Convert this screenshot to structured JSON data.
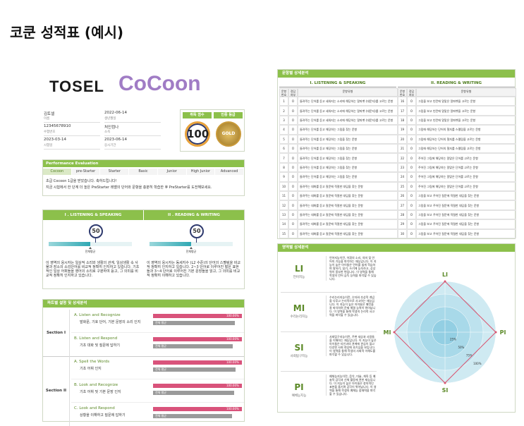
{
  "header": {
    "title": "코쿤 성적표 (예시)"
  },
  "report": {
    "logos": [
      "TOSEL",
      "CoCoon"
    ],
    "info": [
      {
        "value": "김토셀",
        "label": "이름"
      },
      {
        "value": "2022-06-14",
        "label": "생년월일"
      },
      {
        "value": "12345678910",
        "label": "수험번호"
      },
      {
        "value": "처인컴나",
        "label": "소속"
      },
      {
        "value": "2023-03-14",
        "label": "시험일"
      },
      {
        "value": "2023-06-14",
        "label": "응시기간"
      }
    ],
    "score": {
      "label": "취득 점수",
      "value": 100
    },
    "grade": {
      "label": "인증 등급",
      "value": "GOLD"
    },
    "evaluation": {
      "title": "Performance Evaluation",
      "levels": [
        "Cocoon",
        "pre-Starter",
        "Starter",
        "Basic",
        "Junior",
        "High Junior",
        "Advanced"
      ],
      "current_level": "Cocoon",
      "message": [
        "초급 Cocoon 1급을 받았습니다. 축하드립니다!",
        "지금 시험에서 한 단계 더 높은 PreStarter 레벨의 단어와 문항을 충분히 학습한 후 PreStarter를 도전해보세요."
      ]
    },
    "sections": [
      {
        "title": "I . LISTENING & SPEAKING",
        "score": 50,
        "average": 50,
        "average_label": "전체평균",
        "text": "이 영역의 응시자는 일상적 소리와 생활의 관계, 일상생활 속 사물과 장소의 소리단어를 비교적 정확히 인지하고 있습니다. 기초적인 일상 어휘들을 영어의 소리로 구분하여 듣고, 그 의미를 비교적 정확히 인지하고 있습니다."
      },
      {
        "title": "II . READING & WRITING",
        "score": 50,
        "average": 50,
        "average_label": "전체평균",
        "text": "이 영역의 응시자는 동세지수 (L2 수준)의 단어의 스펠링을 비교적 정확히 인지하고 있습니다. 2~3 단어로 이루어진 짧은 표현들과 3~4 단어로 이루어진 기본 문장들을 읽고, 그 의미를 비교적 정확히 이해하고 있습니다."
      }
    ],
    "parts": {
      "title": "파트별 설명 및 상세분석",
      "groups": [
        {
          "name": "Section I",
          "items": [
            {
              "title": "A. Listen and Recognize",
              "desc": "발화문, 기호 단어, 기본 문장의 소리 인지",
              "score": 100,
              "score_label": "100.00%",
              "average": 92,
              "average_label": "전체 평균"
            },
            {
              "title": "B. Listen and Respond",
              "desc": "기초 대화 및 질문에 답하기",
              "score": 100,
              "score_label": "100.00%",
              "average": 90,
              "average_label": "전체 평균"
            }
          ]
        },
        {
          "name": "Section II",
          "items": [
            {
              "title": "A. Spell the Words",
              "desc": "기초 어휘 인지",
              "score": 100,
              "score_label": "100.00%",
              "average": 93,
              "average_label": "전체 평균"
            },
            {
              "title": "B. Look and Recognize",
              "desc": "기초 어휘 및 기본 문장 인지",
              "score": 100,
              "score_label": "100.00%",
              "average": 91,
              "average_label": "전체 평균"
            },
            {
              "title": "C. Look and Respond",
              "desc": "상황을 이해하고 질문에 답하기",
              "score": 100,
              "score_label": "100.00%",
              "average": 89,
              "average_label": "전체 평균"
            }
          ]
        }
      ]
    }
  },
  "items": {
    "title": "문항별 상세분석",
    "headers": [
      "문항번호",
      "정답여부",
      "문항유형"
    ],
    "sections": [
      {
        "title": "I. LISTENING & SPEAKING",
        "rows": [
          [
            "1",
            "O",
            "들려주는 단어를 듣고 세워지는 소리에 해당하는 알파벳 (대문자)를 고르는 문항"
          ],
          [
            "2",
            "O",
            "들려주는 단어를 듣고 세워지는 소리에 해당하는 알파벳 (대문자)를 고르는 문항"
          ],
          [
            "3",
            "O",
            "들려주는 단어를 듣고 세워지는 소리에 해당하는 알파벳 (대문자)를 고르는 문항"
          ],
          [
            "4",
            "O",
            "들려주는 단어를 듣고 해당하는 그림을 찾는 문항"
          ],
          [
            "5",
            "O",
            "들려주는 단어를 듣고 해당하는 그림을 찾는 문항"
          ],
          [
            "6",
            "O",
            "들려주는 단어를 듣고 해당하는 그림을 찾는 문항"
          ],
          [
            "7",
            "O",
            "들려주는 단어를 듣고 해당하는 그림을 찾는 문항"
          ],
          [
            "8",
            "O",
            "들려주는 단어를 듣고 해당하는 그림을 찾는 문항"
          ],
          [
            "9",
            "O",
            "들려주는 단어를 듣고 해당하는 그림을 찾는 문항"
          ],
          [
            "10",
            "O",
            "들려주는 대화를 듣고 질문에 적절한 대답을 찾는 문항"
          ],
          [
            "11",
            "O",
            "들려주는 대화를 듣고 질문에 적절한 대답을 찾는 문항"
          ],
          [
            "12",
            "O",
            "들려주는 대화를 듣고 질문에 적절한 대답을 찾는 문항"
          ],
          [
            "13",
            "O",
            "들려주는 대화를 듣고 질문에 적절한 대답을 찾는 문항"
          ],
          [
            "14",
            "O",
            "들려주는 대화를 듣고 질문에 적절한 대답을 찾는 문항"
          ],
          [
            "15",
            "O",
            "들려주는 대화를 듣고 질문에 적절한 대답을 찾는 문항"
          ]
        ]
      },
      {
        "title": "II. READING & WRITING",
        "rows": [
          [
            "16",
            "O",
            "그림을 보고 빈칸에 알맞은 알파벳을 고르는 문항"
          ],
          [
            "17",
            "O",
            "그림을 보고 빈칸에 알맞은 알파벳을 고르는 문항"
          ],
          [
            "18",
            "O",
            "그림을 보고 빈칸에 알맞은 알파벳을 고르는 문항"
          ],
          [
            "19",
            "O",
            "그림에 해당하는 단어의 철자를 스펠링을 고르는 문항"
          ],
          [
            "20",
            "O",
            "그림에 해당하는 단어의 철자를 스펠링을 고르는 문항"
          ],
          [
            "21",
            "O",
            "그림에 해당하는 단어의 철자를 스펠링을 고르는 문항"
          ],
          [
            "22",
            "O",
            "주어진 그림에 해당하는 알맞은 단어를 고르는 문항"
          ],
          [
            "23",
            "O",
            "주어진 그림에 해당하는 알맞은 단어를 고르는 문항"
          ],
          [
            "24",
            "O",
            "주어진 그림에 해당하는 알맞은 단어를 고르는 문항"
          ],
          [
            "25",
            "O",
            "주어진 그림에 해당하는 알맞은 단어를 고르는 문항"
          ],
          [
            "26",
            "O",
            "그림을 보고 주어진 질문에 적절한 대답을 찾는 문항"
          ],
          [
            "27",
            "O",
            "그림을 보고 주어진 질문에 적절한 대답을 찾는 문항"
          ],
          [
            "28",
            "O",
            "그림을 보고 주어진 질문에 적절한 대답을 찾는 문항"
          ],
          [
            "29",
            "O",
            "그림을 보고 주어진 질문에 적절한 대답을 찾는 문항"
          ],
          [
            "30",
            "O",
            "그림을 보고 주어진 질문에 적절한 대답을 찾는 문항"
          ]
        ]
      }
    ]
  },
  "areas": {
    "title": "영역별 상세분석",
    "list": [
      {
        "code": "LI",
        "name": "언어지능",
        "text": "언어지능이란, 어휘의 소리, 의미 및 언어의 기능을 파악하는 재능입니다. 이 지능이 높은 아이들은 언어를 쉽게 학습하며 말하기, 읽기, 쓰기에 능숙하고, 상상력이 풍부한 편입니다. 이 영역을 통해 학생의 언어 습득 능력을 파악할 수 있습니다."
      },
      {
        "code": "MI",
        "name": "수리논리지능",
        "text": "수리논리지능이란, 숫자와 추상적 개념을 다루고 논리적으로 사고하는 재능입니다. 이 지능이 높은 아이들은 패턴을 잘 파악하며 문제 해결 능력이 뛰어납니다. 이 영역을 통해 학생의 논리적 사고력을 파악할 수 있습니다."
      },
      {
        "code": "SI",
        "name": "사회탐구지능",
        "text": "사회탐구지능이란, 주변 세상과 사람들을 이해하는 재능입니다. 이 지능이 높은 아이들은 타인과의 관계에 관심이 많고 다양한 사회 현상에 호기심을 보입니다. 이 영역을 통해 학생의 사회적 이해도를 파악할 수 있습니다."
      },
      {
        "code": "PI",
        "name": "예체능지능",
        "text": "예체능지능이란, 음악, 미술, 체육 등 예술적 감각과 신체 활동에 관한 재능입니다. 이 지능이 높은 아이들은 창의적인 표현을 즐기며 감각이 뛰어납니다. 이 영역을 통해 학생의 예체능 잠재력을 파악할 수 있습니다."
      }
    ],
    "radar": {
      "axes": [
        "LI",
        "PI",
        "SI",
        "MI"
      ],
      "values": [
        100,
        100,
        100,
        100
      ],
      "rlim": [
        0,
        100
      ],
      "rticks": [
        {
          "value": 25,
          "label": "25%"
        },
        {
          "value": 50,
          "label": "50%"
        },
        {
          "value": 75,
          "label": "75%"
        },
        {
          "value": 100,
          "label": "100%"
        }
      ],
      "color": "#d9536f"
    }
  }
}
